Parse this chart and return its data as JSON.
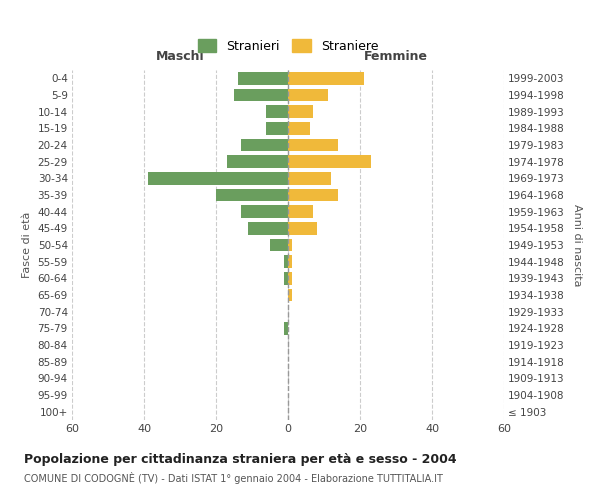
{
  "age_groups": [
    "100+",
    "95-99",
    "90-94",
    "85-89",
    "80-84",
    "75-79",
    "70-74",
    "65-69",
    "60-64",
    "55-59",
    "50-54",
    "45-49",
    "40-44",
    "35-39",
    "30-34",
    "25-29",
    "20-24",
    "15-19",
    "10-14",
    "5-9",
    "0-4"
  ],
  "birth_years": [
    "≤ 1903",
    "1904-1908",
    "1909-1913",
    "1914-1918",
    "1919-1923",
    "1924-1928",
    "1929-1933",
    "1934-1938",
    "1939-1943",
    "1944-1948",
    "1949-1953",
    "1954-1958",
    "1959-1963",
    "1964-1968",
    "1969-1973",
    "1974-1978",
    "1979-1983",
    "1984-1988",
    "1989-1993",
    "1994-1998",
    "1999-2003"
  ],
  "males": [
    0,
    0,
    0,
    0,
    0,
    1,
    0,
    0,
    1,
    1,
    5,
    11,
    13,
    20,
    39,
    17,
    13,
    6,
    6,
    15,
    14
  ],
  "females": [
    0,
    0,
    0,
    0,
    0,
    0,
    0,
    1,
    1,
    1,
    1,
    8,
    7,
    14,
    12,
    23,
    14,
    6,
    7,
    11,
    21
  ],
  "male_color": "#6a9e5e",
  "female_color": "#f0b93a",
  "background_color": "#ffffff",
  "grid_color": "#cccccc",
  "xlim": 60,
  "title": "Popolazione per cittadinanza straniera per età e sesso - 2004",
  "subtitle": "COMUNE DI CODOGNÈ (TV) - Dati ISTAT 1° gennaio 2004 - Elaborazione TUTTITALIA.IT",
  "ylabel_left": "Fasce di età",
  "ylabel_right": "Anni di nascita",
  "legend_stranieri": "Stranieri",
  "legend_straniere": "Straniere",
  "header_maschi": "Maschi",
  "header_femmine": "Femmine"
}
